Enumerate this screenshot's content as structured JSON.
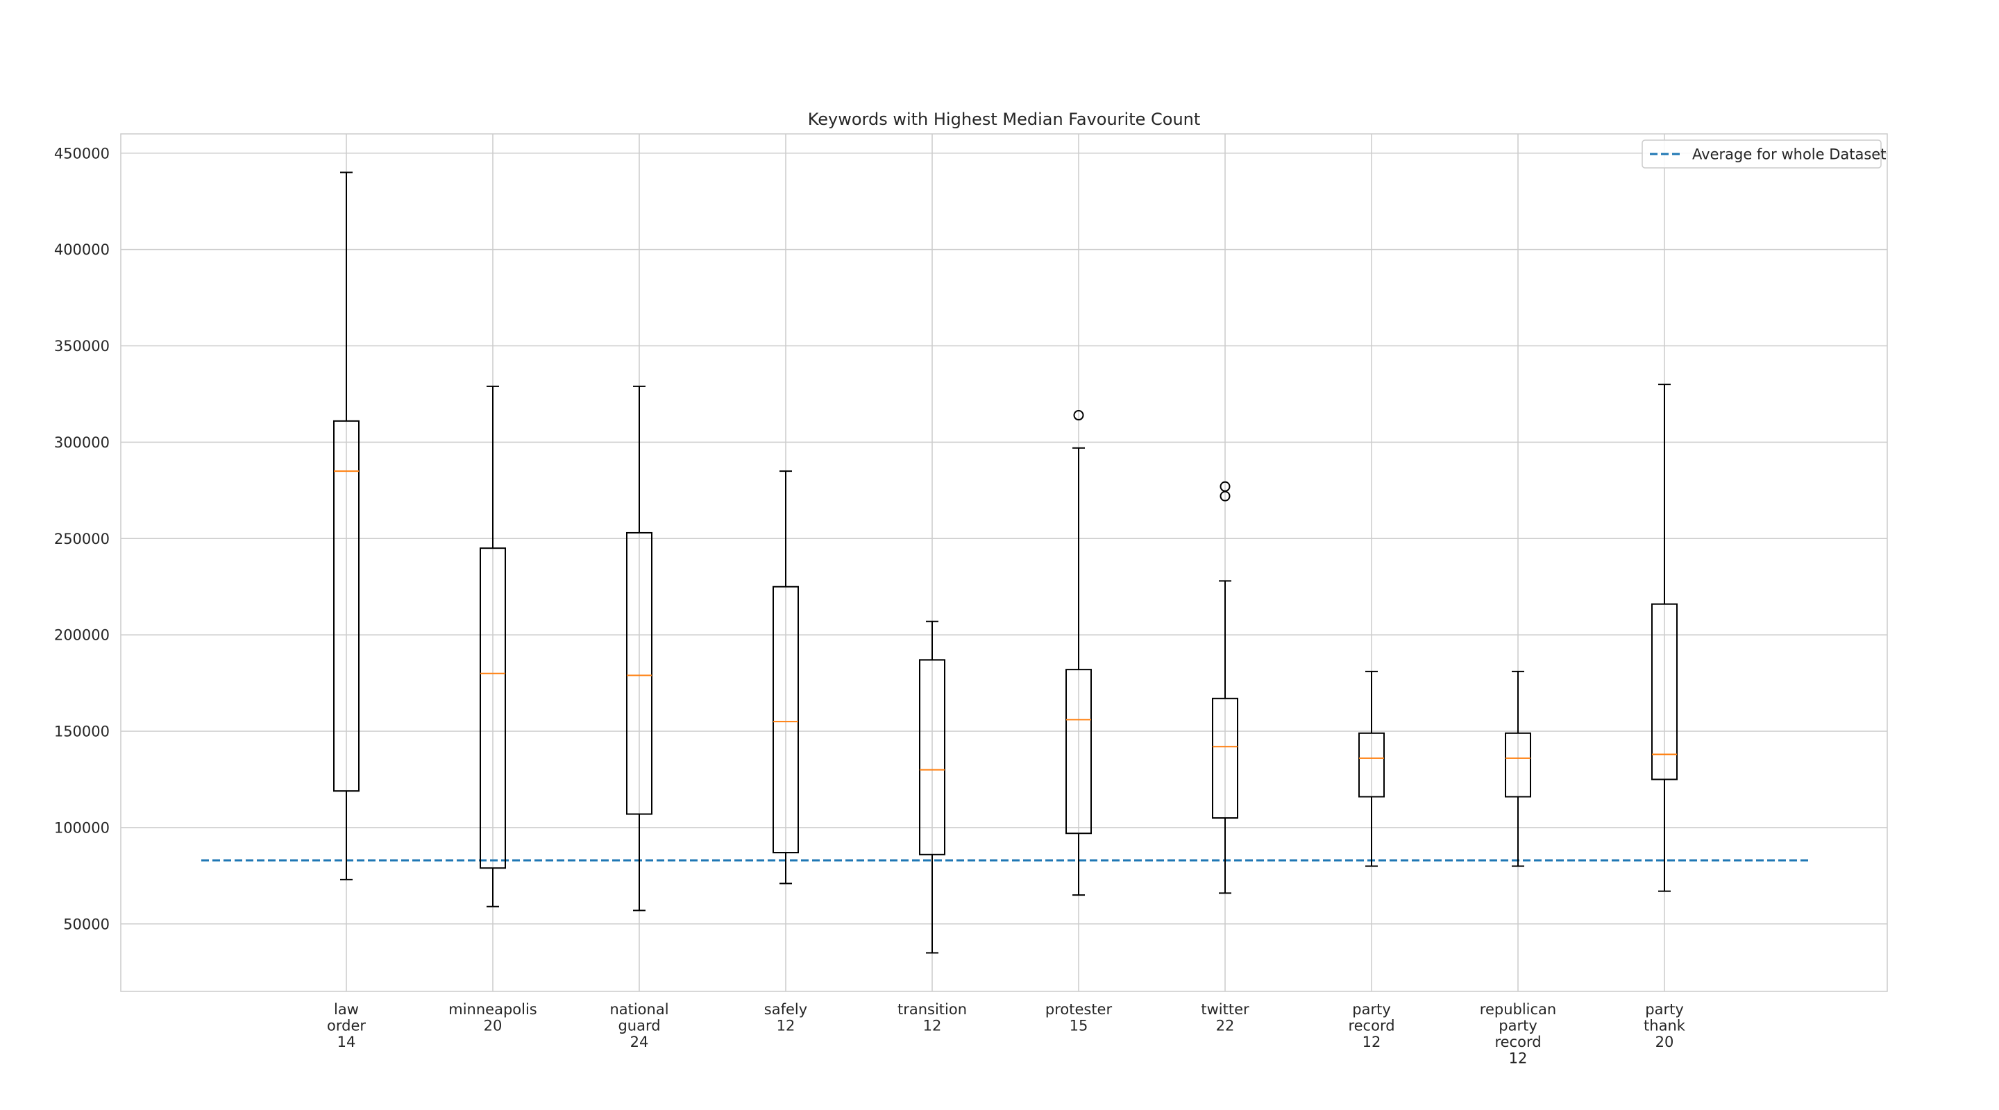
{
  "chart_data": {
    "type": "boxplot",
    "title": "Keywords with Highest Median Favourite Count",
    "xlabel": "",
    "ylabel": "",
    "ylim": [
      15000,
      460000
    ],
    "yticks": [
      50000,
      100000,
      150000,
      200000,
      250000,
      300000,
      350000,
      400000,
      450000
    ],
    "grid": true,
    "legend": {
      "placement": "top-right",
      "label": "Average for whole Dataset"
    },
    "reference_line": {
      "name": "Average for whole Dataset",
      "value": 83000,
      "style": "dashed",
      "color": "#1f77b4"
    },
    "colors": {
      "box": "#000000",
      "median": "#ff7f0e",
      "grid": "#cccccc"
    },
    "categories": [
      {
        "lines": [
          "law",
          "order",
          "14"
        ],
        "whislo": 73000,
        "q1": 119000,
        "med": 285000,
        "q3": 311000,
        "whishi": 440000,
        "fliers": []
      },
      {
        "lines": [
          "minneapolis",
          "20"
        ],
        "whislo": 59000,
        "q1": 79000,
        "med": 180000,
        "q3": 245000,
        "whishi": 329000,
        "fliers": []
      },
      {
        "lines": [
          "national",
          "guard",
          "24"
        ],
        "whislo": 57000,
        "q1": 107000,
        "med": 179000,
        "q3": 253000,
        "whishi": 329000,
        "fliers": []
      },
      {
        "lines": [
          "safely",
          "12"
        ],
        "whislo": 71000,
        "q1": 87000,
        "med": 155000,
        "q3": 225000,
        "whishi": 285000,
        "fliers": []
      },
      {
        "lines": [
          "transition",
          "12"
        ],
        "whislo": 35000,
        "q1": 86000,
        "med": 130000,
        "q3": 187000,
        "whishi": 207000,
        "fliers": []
      },
      {
        "lines": [
          "protester",
          "15"
        ],
        "whislo": 65000,
        "q1": 97000,
        "med": 156000,
        "q3": 182000,
        "whishi": 297000,
        "fliers": [
          314000
        ]
      },
      {
        "lines": [
          "twitter",
          "22"
        ],
        "whislo": 66000,
        "q1": 105000,
        "med": 142000,
        "q3": 167000,
        "whishi": 228000,
        "fliers": [
          277000,
          272000
        ]
      },
      {
        "lines": [
          "party",
          "record",
          "12"
        ],
        "whislo": 80000,
        "q1": 116000,
        "med": 136000,
        "q3": 149000,
        "whishi": 181000,
        "fliers": []
      },
      {
        "lines": [
          "republican",
          "party",
          "record",
          "12"
        ],
        "whislo": 80000,
        "q1": 116000,
        "med": 136000,
        "q3": 149000,
        "whishi": 181000,
        "fliers": []
      },
      {
        "lines": [
          "party",
          "thank",
          "20"
        ],
        "whislo": 67000,
        "q1": 125000,
        "med": 138000,
        "q3": 216000,
        "whishi": 330000,
        "fliers": []
      }
    ]
  }
}
